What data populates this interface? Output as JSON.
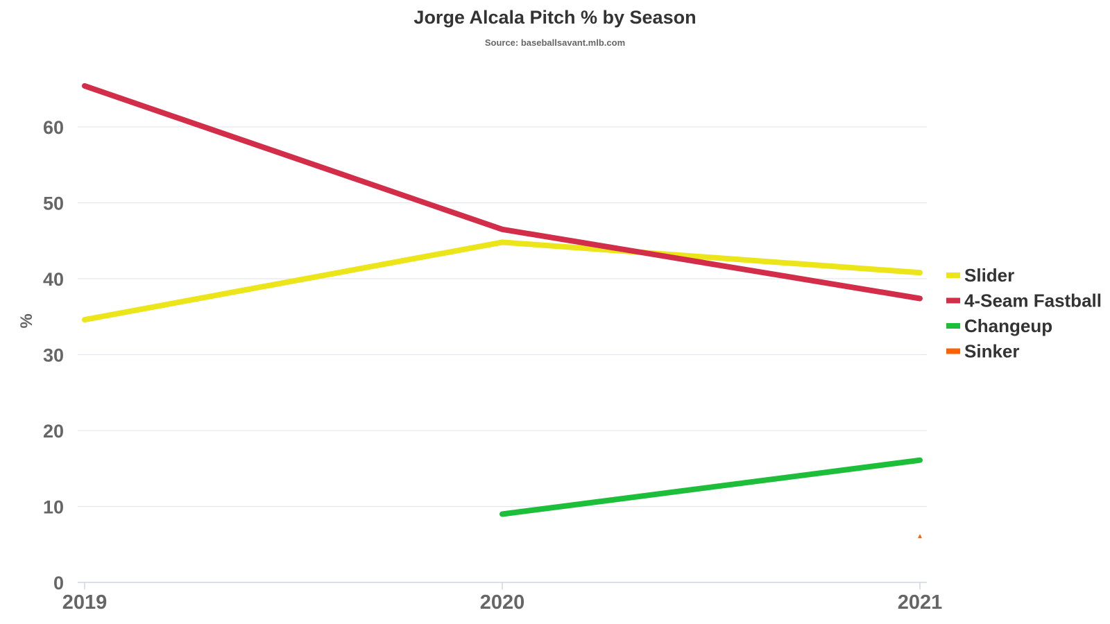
{
  "title": "Jorge Alcala Pitch % by Season",
  "subtitle": "Source: baseballsavant.mlb.com",
  "chart_data": {
    "type": "line",
    "title": "Jorge Alcala Pitch % by Season",
    "subtitle": "Source: baseballsavant.mlb.com",
    "xlabel": "",
    "ylabel": "%",
    "categories": [
      "2019",
      "2020",
      "2021"
    ],
    "ylim": [
      0,
      68
    ],
    "yticks": [
      0,
      10,
      20,
      30,
      40,
      50,
      60
    ],
    "grid": true,
    "legend_position": "right",
    "series": [
      {
        "name": "Slider",
        "color": "#ebe519",
        "values": [
          34.6,
          44.8,
          40.8
        ]
      },
      {
        "name": "4-Seam Fastball",
        "color": "#d22d49",
        "values": [
          65.4,
          46.5,
          37.4
        ]
      },
      {
        "name": "Changeup",
        "color": "#1dbe3a",
        "values": [
          null,
          9.0,
          16.1
        ]
      },
      {
        "name": "Sinker",
        "color": "#fe6100",
        "values": [
          null,
          null,
          6.1
        ]
      }
    ]
  }
}
